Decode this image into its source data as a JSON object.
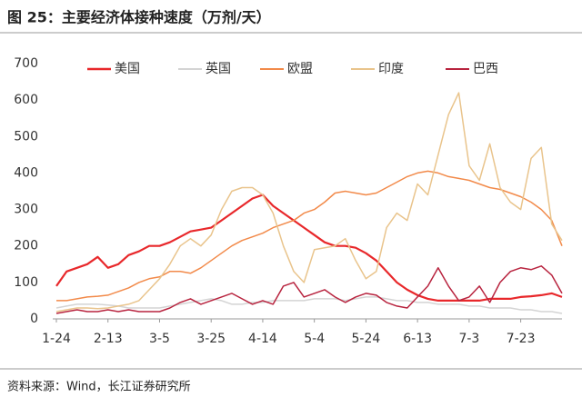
{
  "title": "图 25：主要经济体接种速度（万剂/天）",
  "source": "资料来源：Wind，长江证券研究所",
  "chart_data": {
    "type": "line",
    "categories": [
      "1-24",
      null,
      null,
      null,
      null,
      "2-13",
      null,
      null,
      null,
      null,
      "3-5",
      null,
      null,
      null,
      null,
      "3-25",
      null,
      null,
      null,
      null,
      "4-14",
      null,
      null,
      null,
      null,
      "5-4",
      null,
      null,
      null,
      null,
      "5-24",
      null,
      null,
      null,
      null,
      "6-13",
      null,
      null,
      null,
      null,
      "7-3",
      null,
      null,
      null,
      null,
      "7-23",
      null,
      null,
      null,
      null
    ],
    "ylim": [
      0,
      700
    ],
    "yticks": [
      0,
      100,
      200,
      300,
      400,
      500,
      600,
      700
    ],
    "grid": false,
    "legend": "top",
    "series": [
      {
        "name": "美国",
        "color": "#e8282b",
        "values": [
          90,
          130,
          140,
          150,
          170,
          140,
          150,
          175,
          185,
          200,
          200,
          210,
          225,
          240,
          245,
          250,
          270,
          290,
          310,
          330,
          340,
          310,
          290,
          270,
          250,
          230,
          210,
          200,
          200,
          195,
          180,
          160,
          130,
          100,
          80,
          65,
          55,
          50,
          50,
          50,
          50,
          50,
          55,
          55,
          55,
          60,
          62,
          65,
          70,
          60
        ]
      },
      {
        "name": "英国",
        "color": "#d4d4d4",
        "values": [
          30,
          35,
          40,
          40,
          40,
          38,
          35,
          30,
          30,
          30,
          30,
          35,
          40,
          45,
          50,
          55,
          50,
          40,
          40,
          45,
          45,
          50,
          50,
          50,
          50,
          55,
          55,
          55,
          50,
          55,
          60,
          60,
          55,
          50,
          50,
          45,
          45,
          40,
          40,
          40,
          35,
          35,
          30,
          30,
          30,
          25,
          25,
          20,
          20,
          15
        ]
      },
      {
        "name": "欧盟",
        "color": "#f28a4a",
        "values": [
          50,
          50,
          55,
          60,
          62,
          65,
          75,
          85,
          100,
          110,
          115,
          130,
          130,
          125,
          140,
          160,
          180,
          200,
          215,
          225,
          235,
          250,
          260,
          270,
          290,
          300,
          320,
          345,
          350,
          345,
          340,
          345,
          360,
          375,
          390,
          400,
          405,
          400,
          390,
          385,
          380,
          370,
          360,
          355,
          345,
          335,
          320,
          300,
          270,
          200
        ]
      },
      {
        "name": "印度",
        "color": "#e9c48c",
        "values": [
          20,
          25,
          30,
          30,
          28,
          30,
          35,
          40,
          50,
          80,
          110,
          150,
          200,
          220,
          200,
          230,
          300,
          350,
          360,
          360,
          340,
          290,
          200,
          130,
          100,
          190,
          195,
          200,
          220,
          160,
          110,
          130,
          250,
          290,
          270,
          370,
          340,
          450,
          560,
          620,
          420,
          380,
          480,
          360,
          320,
          300,
          440,
          470,
          260,
          215
        ]
      },
      {
        "name": "巴西",
        "color": "#b8243f",
        "values": [
          15,
          20,
          25,
          20,
          20,
          25,
          20,
          25,
          20,
          20,
          20,
          30,
          45,
          55,
          40,
          50,
          60,
          70,
          55,
          40,
          50,
          40,
          90,
          100,
          60,
          70,
          80,
          60,
          45,
          60,
          70,
          65,
          45,
          35,
          30,
          60,
          90,
          140,
          90,
          50,
          60,
          90,
          45,
          100,
          130,
          140,
          135,
          145,
          120,
          70
        ]
      }
    ]
  }
}
